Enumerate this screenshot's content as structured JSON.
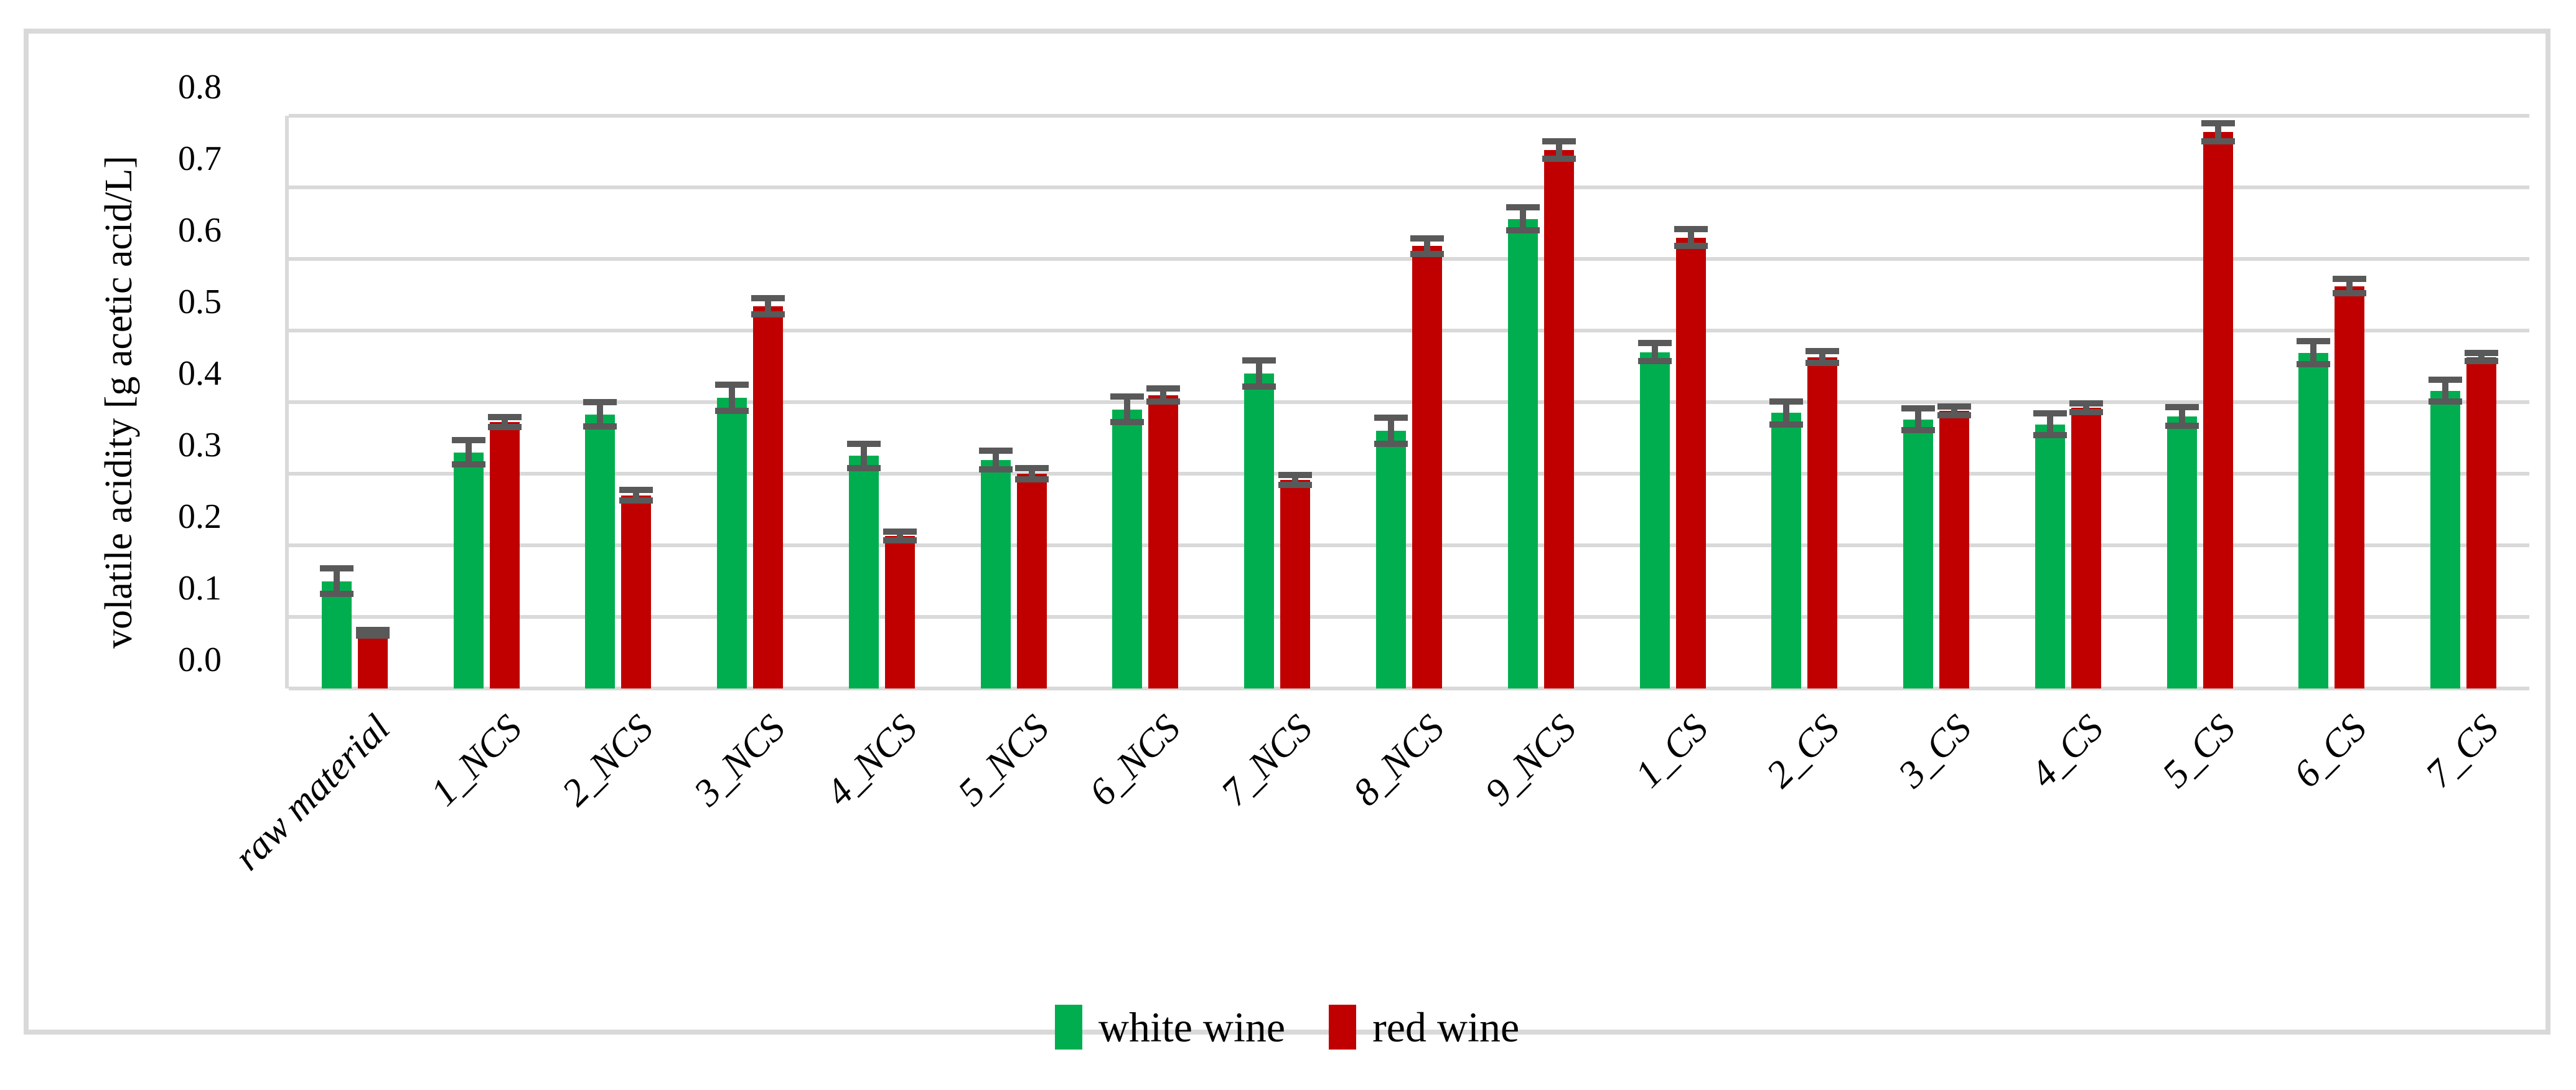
{
  "figure": {
    "background": "#ffffff",
    "frame_color": "#d9d9d9"
  },
  "chart_data": {
    "type": "bar",
    "title": "",
    "xlabel": "",
    "ylabel": "volatile acidity [g acetic acid/L]",
    "ylim": [
      0.0,
      0.8
    ],
    "ytick_step": 0.1,
    "yticks": [
      "0.0",
      "0.1",
      "0.2",
      "0.3",
      "0.4",
      "0.5",
      "0.6",
      "0.7",
      "0.8"
    ],
    "grid": true,
    "gridline_color": "#d9d9d9",
    "error_bar_color": "#595959",
    "legend_position": "bottom",
    "categories": [
      "raw material",
      "1_NCS",
      "2_NCS",
      "3_NCS",
      "4_NCS",
      "5_NCS",
      "6_NCS",
      "7_NCS",
      "8_NCS",
      "9_NCS",
      "1_CS",
      "2_CS",
      "3_CS",
      "4_CS",
      "5_CS",
      "6_CS",
      "7_CS"
    ],
    "series": [
      {
        "name": "white wine",
        "color": "#00ae4f",
        "values": [
          0.15,
          0.33,
          0.383,
          0.406,
          0.325,
          0.319,
          0.39,
          0.44,
          0.36,
          0.656,
          0.47,
          0.385,
          0.376,
          0.369,
          0.38,
          0.469,
          0.416
        ],
        "errors": [
          0.018,
          0.017,
          0.017,
          0.018,
          0.017,
          0.013,
          0.018,
          0.018,
          0.018,
          0.016,
          0.013,
          0.016,
          0.015,
          0.015,
          0.013,
          0.016,
          0.015
        ]
      },
      {
        "name": "red wine",
        "color": "#c00000",
        "values": [
          0.078,
          0.372,
          0.27,
          0.534,
          0.213,
          0.3,
          0.41,
          0.291,
          0.618,
          0.752,
          0.63,
          0.463,
          0.388,
          0.392,
          0.777,
          0.562,
          0.463
        ],
        "errors": [
          0.004,
          0.007,
          0.007,
          0.011,
          0.006,
          0.008,
          0.009,
          0.007,
          0.011,
          0.012,
          0.012,
          0.008,
          0.006,
          0.006,
          0.013,
          0.01,
          0.006
        ]
      }
    ]
  },
  "legend": {
    "items": [
      {
        "label": "white wine",
        "color": "#00ae4f"
      },
      {
        "label": "red wine",
        "color": "#c00000"
      }
    ]
  }
}
